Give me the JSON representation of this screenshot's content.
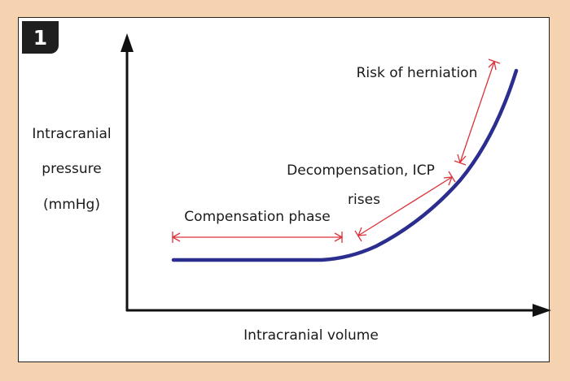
{
  "figure_number": "1",
  "y_axis_label": [
    "Intracranial",
    "pressure",
    "(mmHg)"
  ],
  "x_axis_label": "Intracranial volume",
  "phases": {
    "compensation": "Compensation phase",
    "decompensation": [
      "Decompensation, ICP",
      "rises"
    ],
    "herniation": "Risk of herniation"
  },
  "colors": {
    "background": "#f6d3b0",
    "curve": "#2b2e8e",
    "annotation_arrows": "#d9323a",
    "axes": "#111111"
  }
}
